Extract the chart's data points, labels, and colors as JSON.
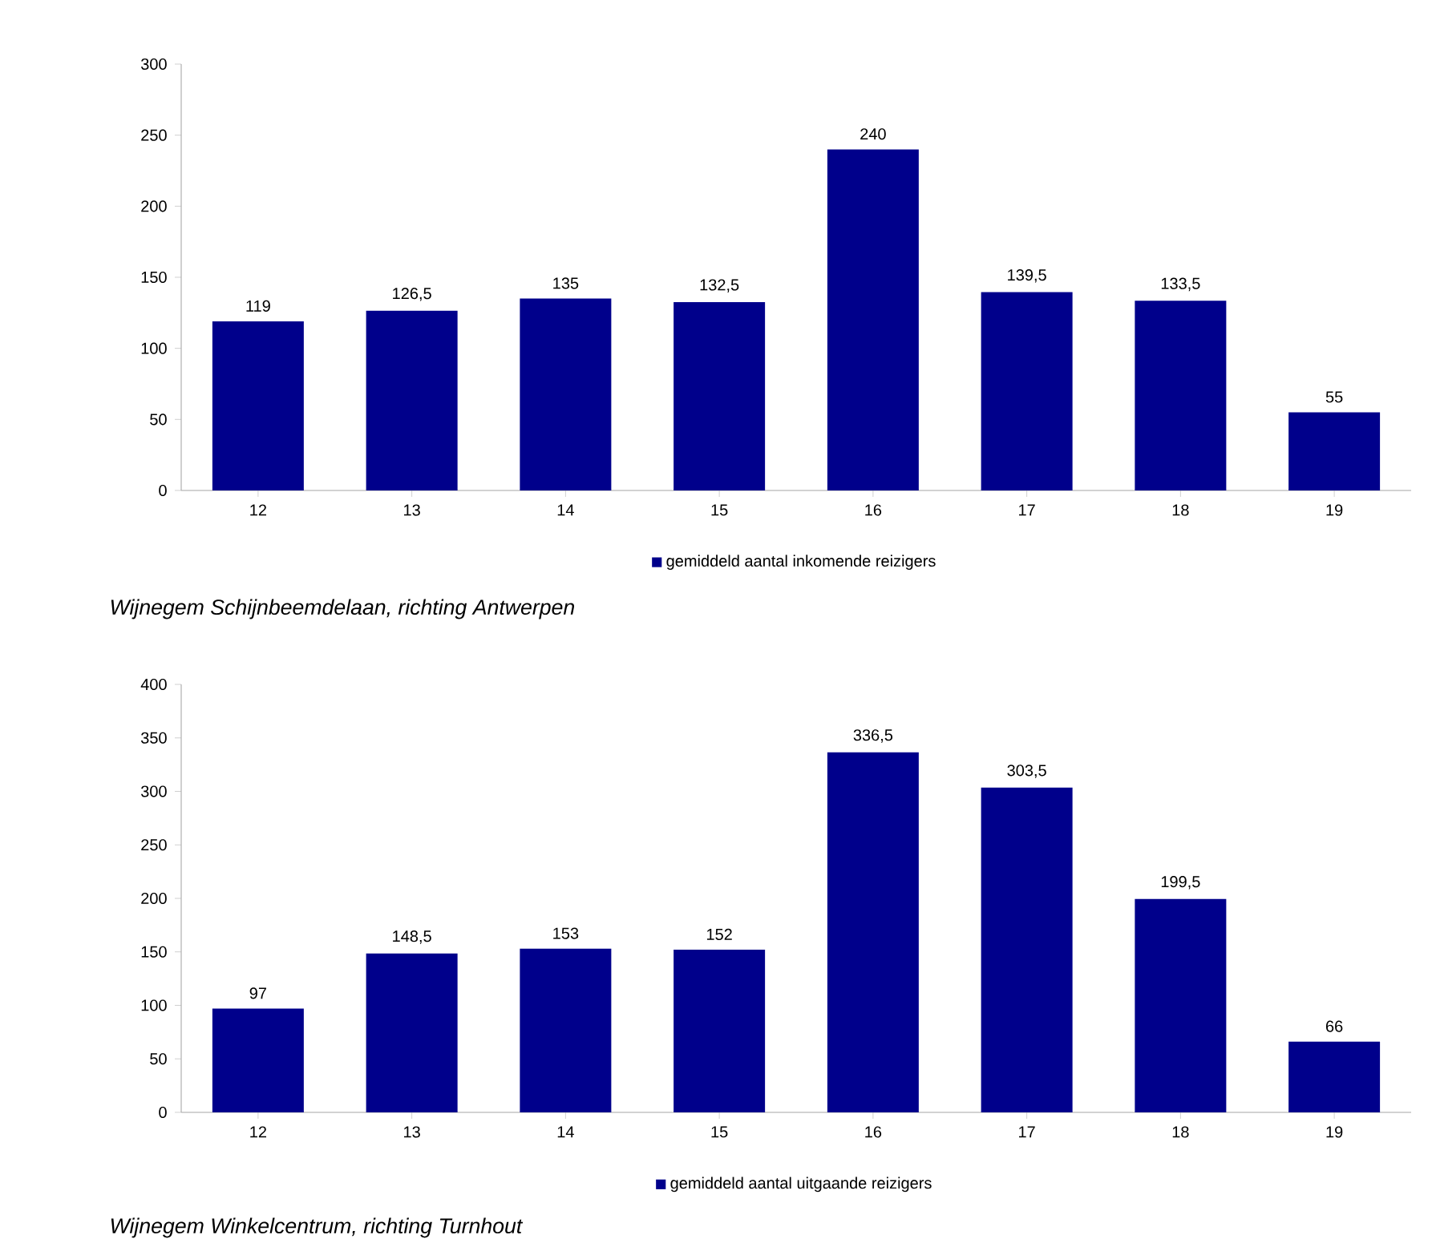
{
  "chart_data": [
    {
      "type": "bar",
      "categories": [
        "12",
        "13",
        "14",
        "15",
        "16",
        "17",
        "18",
        "19"
      ],
      "series": [
        {
          "name": "gemiddeld aantal inkomende reizigers",
          "color": "#00008b",
          "values": [
            119,
            126.5,
            135,
            132.5,
            240,
            139.5,
            133.5,
            55
          ],
          "value_labels": [
            "119",
            "126,5",
            "135",
            "132,5",
            "240",
            "139,5",
            "133,5",
            "55"
          ]
        }
      ],
      "ylim": [
        0,
        300
      ],
      "yticks": [
        0,
        50,
        100,
        150,
        200,
        250,
        300
      ],
      "legend": "bottom",
      "annotations": [
        "Wijnegem Schijnbeemdelaan, richting Antwerpen"
      ]
    },
    {
      "type": "bar",
      "categories": [
        "12",
        "13",
        "14",
        "15",
        "16",
        "17",
        "18",
        "19"
      ],
      "series": [
        {
          "name": "gemiddeld aantal uitgaande reizigers",
          "color": "#00008b",
          "values": [
            97,
            148.5,
            153,
            152,
            336.5,
            303.5,
            199.5,
            66
          ],
          "value_labels": [
            "97",
            "148,5",
            "153",
            "152",
            "336,5",
            "303,5",
            "199,5",
            "66"
          ]
        }
      ],
      "ylim": [
        0,
        400
      ],
      "yticks": [
        0,
        50,
        100,
        150,
        200,
        250,
        300,
        350,
        400
      ],
      "legend": "bottom",
      "annotations": [
        "Wijnegem Winkelcentrum, richting Turnhout"
      ]
    }
  ]
}
